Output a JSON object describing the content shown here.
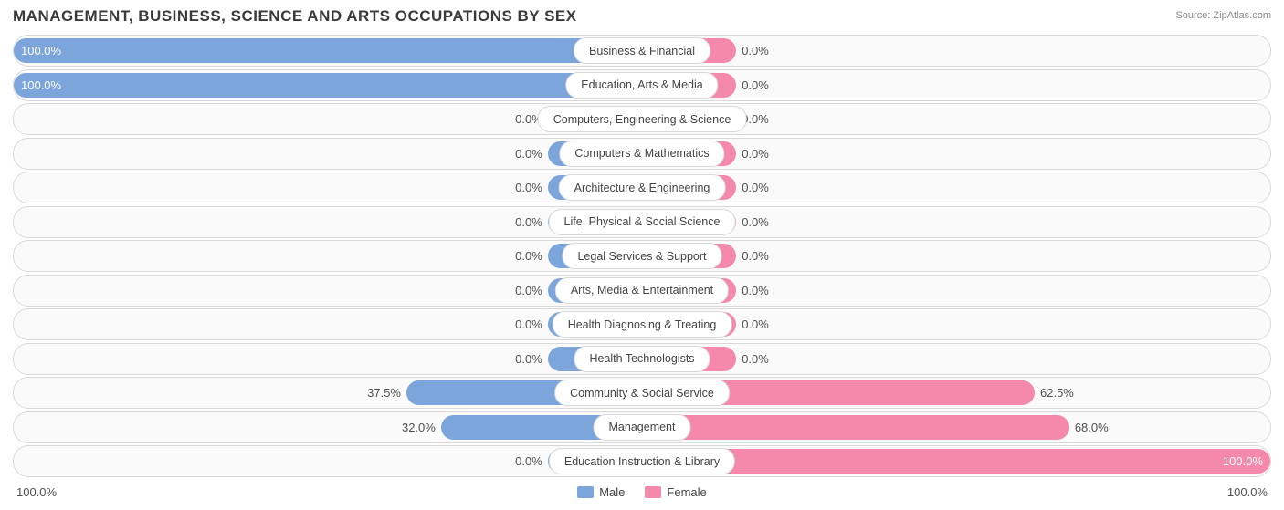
{
  "title": "MANAGEMENT, BUSINESS, SCIENCE AND ARTS OCCUPATIONS BY SEX",
  "source": "Source: ZipAtlas.com",
  "colors": {
    "male": "#7ca5db",
    "female": "#f489ab",
    "track_border": "#d9d9d9",
    "track_bg": "#fafafa",
    "text": "#444444"
  },
  "stub_width_pct": 15,
  "legend": {
    "male": "Male",
    "female": "Female"
  },
  "axis": {
    "left": "100.0%",
    "right": "100.0%"
  },
  "rows": [
    {
      "category": "Business & Financial",
      "male": 100.0,
      "female": 0.0
    },
    {
      "category": "Education, Arts & Media",
      "male": 100.0,
      "female": 0.0
    },
    {
      "category": "Computers, Engineering & Science",
      "male": 0.0,
      "female": 0.0
    },
    {
      "category": "Computers & Mathematics",
      "male": 0.0,
      "female": 0.0
    },
    {
      "category": "Architecture & Engineering",
      "male": 0.0,
      "female": 0.0
    },
    {
      "category": "Life, Physical & Social Science",
      "male": 0.0,
      "female": 0.0
    },
    {
      "category": "Legal Services & Support",
      "male": 0.0,
      "female": 0.0
    },
    {
      "category": "Arts, Media & Entertainment",
      "male": 0.0,
      "female": 0.0
    },
    {
      "category": "Health Diagnosing & Treating",
      "male": 0.0,
      "female": 0.0
    },
    {
      "category": "Health Technologists",
      "male": 0.0,
      "female": 0.0
    },
    {
      "category": "Community & Social Service",
      "male": 37.5,
      "female": 62.5
    },
    {
      "category": "Management",
      "male": 32.0,
      "female": 68.0
    },
    {
      "category": "Education Instruction & Library",
      "male": 0.0,
      "female": 100.0
    }
  ]
}
